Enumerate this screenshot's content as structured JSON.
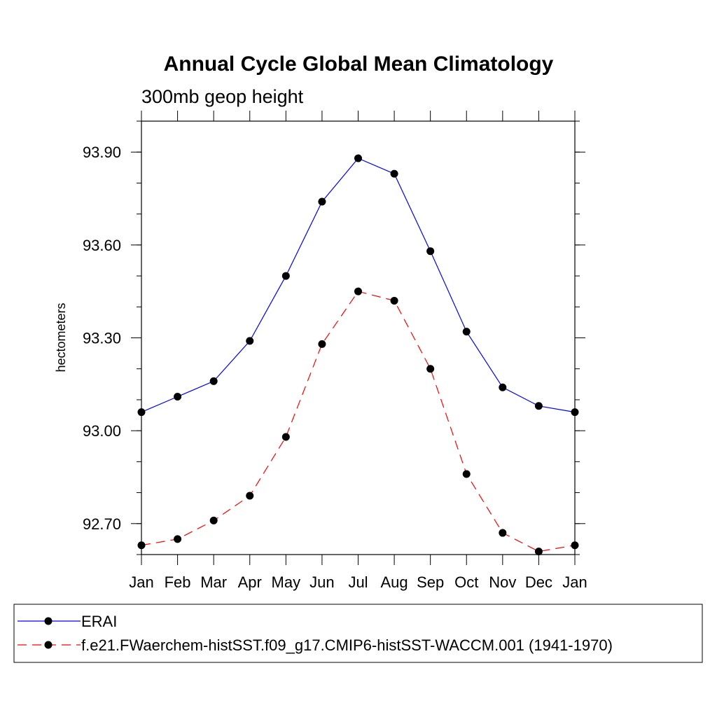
{
  "chart_data": {
    "type": "line",
    "title": "Annual Cycle Global Mean Climatology",
    "subtitle": "300mb geop height",
    "xlabel": "",
    "ylabel": "hectometers",
    "categories": [
      "Jan",
      "Feb",
      "Mar",
      "Apr",
      "May",
      "Jun",
      "Jul",
      "Aug",
      "Sep",
      "Oct",
      "Nov",
      "Dec",
      "Jan"
    ],
    "ylim": [
      92.6,
      94.0
    ],
    "yticks": [
      "93.90",
      "93.60",
      "93.30",
      "93.00",
      "92.70"
    ],
    "ytick_values": [
      93.9,
      93.6,
      93.3,
      93.0,
      92.7
    ],
    "legend_position": "bottom",
    "series": [
      {
        "name": "ERAI",
        "color": "#0000ff",
        "dash": "solid",
        "marker": "filled-circle",
        "values": [
          93.06,
          93.11,
          93.16,
          93.29,
          93.5,
          93.74,
          93.88,
          93.83,
          93.58,
          93.32,
          93.14,
          93.08,
          93.06
        ]
      },
      {
        "name": "f.e21.FWaerchem-histSST.f09_g17.CMIP6-histSST-WACCM.001 (1941-1970)",
        "color": "#ff0000",
        "dash": "dashed",
        "marker": "filled-circle",
        "values": [
          92.63,
          92.65,
          92.71,
          92.79,
          92.98,
          93.28,
          93.45,
          93.42,
          93.2,
          92.86,
          92.67,
          92.61,
          92.63
        ]
      }
    ]
  }
}
